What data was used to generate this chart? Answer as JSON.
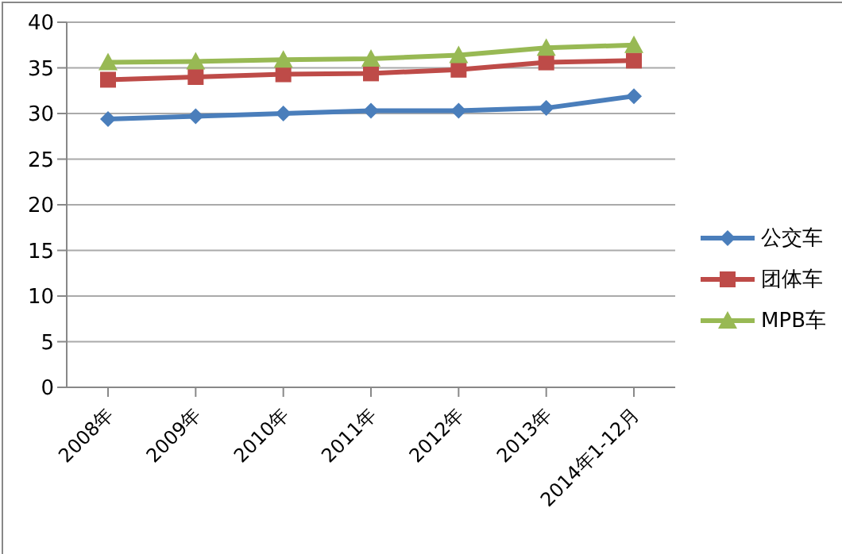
{
  "chart_data": {
    "type": "line",
    "categories": [
      "2008年",
      "2009年",
      "2010年",
      "2011年",
      "2012年",
      "2013年",
      "2014年1-12月"
    ],
    "series": [
      {
        "name": "公交车",
        "color": "#4a7ebb",
        "marker": "diamond",
        "values": [
          29.4,
          29.7,
          30.0,
          30.3,
          30.3,
          30.6,
          31.9
        ]
      },
      {
        "name": "团体车",
        "color": "#be4b48",
        "marker": "square",
        "values": [
          33.7,
          34.0,
          34.3,
          34.4,
          34.8,
          35.6,
          35.8
        ]
      },
      {
        "name": "MPB车",
        "color": "#98b954",
        "marker": "triangle",
        "values": [
          35.6,
          35.7,
          35.9,
          36.0,
          36.4,
          37.2,
          37.5
        ]
      }
    ],
    "ylim": [
      0,
      40
    ],
    "yticks": [
      0,
      5,
      10,
      15,
      20,
      25,
      30,
      35,
      40
    ],
    "grid": "y",
    "legend": "right",
    "line_style": "solid"
  }
}
